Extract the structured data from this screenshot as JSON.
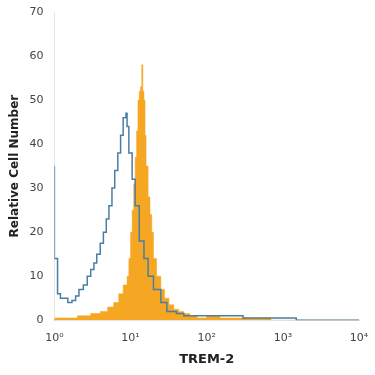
{
  "chart_data": {
    "type": "line",
    "xlabel": "TREM-2",
    "ylabel": "Relative Cell Number",
    "log": "x",
    "grid": false,
    "xlim": [
      1,
      10000
    ],
    "xticks": [
      {
        "value": 1,
        "label": "10⁰"
      },
      {
        "value": 10,
        "label": "10¹"
      },
      {
        "value": 100,
        "label": "10²"
      },
      {
        "value": 1000,
        "label": "10³"
      },
      {
        "value": 10000,
        "label": "10⁴"
      }
    ],
    "ylim": [
      0,
      70
    ],
    "yticks": [
      0,
      10,
      20,
      30,
      40,
      50,
      60,
      70
    ],
    "series": [
      {
        "type": "area",
        "line_style": "steps",
        "color": "#f5a623",
        "x": [
          1.0,
          2.0,
          3.0,
          4.0,
          5.0,
          6.0,
          7.0,
          8.0,
          9.0,
          9.5,
          10.0,
          10.5,
          11.0,
          11.5,
          12.0,
          12.5,
          13.0,
          13.5,
          14.0,
          14.5,
          15.0,
          15.5,
          16.0,
          17.0,
          18.0,
          19.0,
          20.0,
          22.0,
          25.0,
          28.0,
          32.0,
          37.0,
          43.0,
          50.0,
          60.0,
          75.0,
          100.0,
          150.0,
          200.0,
          300.0,
          500.0,
          700.0,
          1000.0,
          2000.0,
          5000.0,
          10000.0
        ],
        "values": [
          0.0,
          0.5,
          1.0,
          1.5,
          2.0,
          3.0,
          4.0,
          6.0,
          8.0,
          10.0,
          14.0,
          20.0,
          25.0,
          31.0,
          37.0,
          43.0,
          50.0,
          52.0,
          53.0,
          58.0,
          52.0,
          50.0,
          42.0,
          35.0,
          28.0,
          24.0,
          20.0,
          14.0,
          10.0,
          7.0,
          5.0,
          3.5,
          2.5,
          2.0,
          1.5,
          1.0,
          0.5,
          1.0,
          0.5,
          0.5,
          0.5,
          0.5,
          0.0,
          0.0,
          0.0,
          0.0
        ]
      },
      {
        "type": "line",
        "line_style": "steps",
        "color": "#4a7fa5",
        "x": [
          1.0,
          1.1,
          1.2,
          1.35,
          1.5,
          1.7,
          1.9,
          2.1,
          2.4,
          2.7,
          3.0,
          3.3,
          3.6,
          4.0,
          4.4,
          4.8,
          5.2,
          5.7,
          6.2,
          6.8,
          7.4,
          8.0,
          8.7,
          9.0,
          9.5,
          10.5,
          11.5,
          13.0,
          15.0,
          17.0,
          20.0,
          25.0,
          30.0,
          40.0,
          50.0,
          70.0,
          100.0,
          150.0,
          200.0,
          300.0,
          500.0,
          700.0,
          1000.0,
          1500.0,
          2000.0,
          5000.0,
          10000.0
        ],
        "values": [
          35.0,
          14.0,
          6.0,
          5.0,
          5.0,
          4.0,
          4.5,
          5.5,
          7.0,
          8.0,
          10.0,
          11.5,
          13.0,
          15.0,
          17.5,
          20.0,
          23.0,
          26.0,
          30.0,
          34.0,
          38.0,
          42.0,
          46.0,
          47.0,
          44.0,
          38.0,
          32.0,
          26.0,
          18.0,
          14.0,
          10.0,
          7.0,
          4.0,
          2.0,
          1.5,
          1.0,
          1.0,
          1.0,
          1.0,
          1.0,
          0.5,
          0.5,
          0.5,
          0.5,
          0.0,
          0.0,
          0.0
        ]
      }
    ]
  }
}
